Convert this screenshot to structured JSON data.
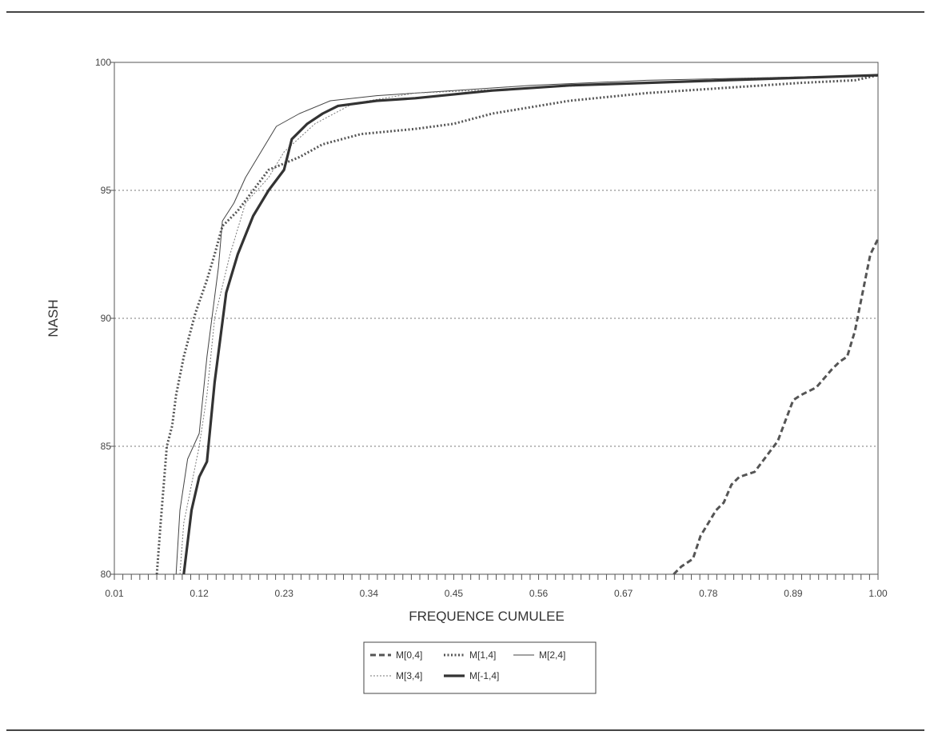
{
  "chart_data": {
    "type": "line",
    "title": "",
    "xlabel": "FREQUENCE CUMULEE",
    "ylabel": "NASH",
    "xlim": [
      0.01,
      1.0
    ],
    "ylim": [
      80,
      100
    ],
    "x_ticks": [
      "0.01",
      "0.12",
      "0.23",
      "0.34",
      "0.45",
      "0.56",
      "0.67",
      "0.78",
      "0.89",
      "1.00"
    ],
    "x_tick_values": [
      0.01,
      0.12,
      0.23,
      0.34,
      0.45,
      0.56,
      0.67,
      0.78,
      0.89,
      1.0
    ],
    "y_ticks": [
      "80",
      "85",
      "90",
      "95",
      "100"
    ],
    "y_tick_values": [
      80,
      85,
      90,
      95,
      100
    ],
    "grid": "horizontal dotted",
    "legend_position": "bottom-center",
    "series": [
      {
        "name": "M[0,4]",
        "style": "dashed",
        "color": "#555555",
        "points": [
          [
            0.735,
            80.0
          ],
          [
            0.745,
            80.3
          ],
          [
            0.76,
            80.6
          ],
          [
            0.77,
            81.5
          ],
          [
            0.78,
            82.0
          ],
          [
            0.79,
            82.5
          ],
          [
            0.8,
            82.8
          ],
          [
            0.81,
            83.5
          ],
          [
            0.82,
            83.8
          ],
          [
            0.84,
            84.0
          ],
          [
            0.86,
            84.8
          ],
          [
            0.87,
            85.2
          ],
          [
            0.88,
            86.0
          ],
          [
            0.89,
            86.8
          ],
          [
            0.9,
            87.0
          ],
          [
            0.92,
            87.3
          ],
          [
            0.94,
            88.0
          ],
          [
            0.95,
            88.3
          ],
          [
            0.96,
            88.5
          ],
          [
            0.97,
            89.5
          ],
          [
            0.98,
            91.0
          ],
          [
            0.99,
            92.5
          ],
          [
            1.0,
            93.1
          ]
        ]
      },
      {
        "name": "M[1,4]",
        "style": "dotted",
        "color": "#555555",
        "points": [
          [
            0.065,
            80.0
          ],
          [
            0.07,
            82.0
          ],
          [
            0.078,
            85.0
          ],
          [
            0.085,
            85.8
          ],
          [
            0.09,
            87.0
          ],
          [
            0.1,
            88.5
          ],
          [
            0.115,
            90.2
          ],
          [
            0.13,
            91.5
          ],
          [
            0.14,
            92.5
          ],
          [
            0.15,
            93.6
          ],
          [
            0.17,
            94.2
          ],
          [
            0.19,
            95.0
          ],
          [
            0.21,
            95.8
          ],
          [
            0.25,
            96.3
          ],
          [
            0.28,
            96.8
          ],
          [
            0.33,
            97.2
          ],
          [
            0.4,
            97.4
          ],
          [
            0.45,
            97.6
          ],
          [
            0.5,
            98.0
          ],
          [
            0.6,
            98.5
          ],
          [
            0.7,
            98.8
          ],
          [
            0.8,
            99.0
          ],
          [
            0.9,
            99.2
          ],
          [
            0.97,
            99.3
          ],
          [
            1.0,
            99.5
          ]
        ]
      },
      {
        "name": "M[2,4]",
        "style": "solid-thin",
        "color": "#444444",
        "points": [
          [
            0.09,
            80.0
          ],
          [
            0.095,
            82.5
          ],
          [
            0.105,
            84.5
          ],
          [
            0.12,
            85.5
          ],
          [
            0.13,
            88.5
          ],
          [
            0.145,
            92.0
          ],
          [
            0.15,
            93.8
          ],
          [
            0.165,
            94.5
          ],
          [
            0.18,
            95.5
          ],
          [
            0.2,
            96.5
          ],
          [
            0.22,
            97.5
          ],
          [
            0.25,
            98.0
          ],
          [
            0.29,
            98.5
          ],
          [
            0.35,
            98.7
          ],
          [
            0.45,
            98.9
          ],
          [
            0.55,
            99.1
          ],
          [
            0.7,
            99.3
          ],
          [
            0.85,
            99.4
          ],
          [
            1.0,
            99.5
          ]
        ]
      },
      {
        "name": "M[3,4]",
        "style": "dotted-thin",
        "color": "#777777",
        "points": [
          [
            0.095,
            80.0
          ],
          [
            0.1,
            82.0
          ],
          [
            0.11,
            83.5
          ],
          [
            0.12,
            85.0
          ],
          [
            0.13,
            87.0
          ],
          [
            0.14,
            90.0
          ],
          [
            0.16,
            92.5
          ],
          [
            0.18,
            94.5
          ],
          [
            0.21,
            95.5
          ],
          [
            0.23,
            96.5
          ],
          [
            0.27,
            97.6
          ],
          [
            0.32,
            98.4
          ],
          [
            0.4,
            98.8
          ],
          [
            0.55,
            99.0
          ],
          [
            0.7,
            99.2
          ],
          [
            0.85,
            99.4
          ],
          [
            1.0,
            99.5
          ]
        ]
      },
      {
        "name": "M[-1,4]",
        "style": "solid-thick",
        "color": "#333333",
        "points": [
          [
            0.1,
            80.0
          ],
          [
            0.11,
            82.5
          ],
          [
            0.12,
            83.8
          ],
          [
            0.13,
            84.4
          ],
          [
            0.14,
            87.5
          ],
          [
            0.155,
            91.0
          ],
          [
            0.17,
            92.5
          ],
          [
            0.19,
            94.0
          ],
          [
            0.21,
            95.0
          ],
          [
            0.23,
            95.8
          ],
          [
            0.24,
            97.0
          ],
          [
            0.26,
            97.6
          ],
          [
            0.28,
            98.0
          ],
          [
            0.3,
            98.3
          ],
          [
            0.35,
            98.5
          ],
          [
            0.4,
            98.6
          ],
          [
            0.5,
            98.9
          ],
          [
            0.6,
            99.1
          ],
          [
            0.7,
            99.2
          ],
          [
            0.8,
            99.3
          ],
          [
            0.9,
            99.4
          ],
          [
            1.0,
            99.5
          ]
        ]
      }
    ]
  }
}
